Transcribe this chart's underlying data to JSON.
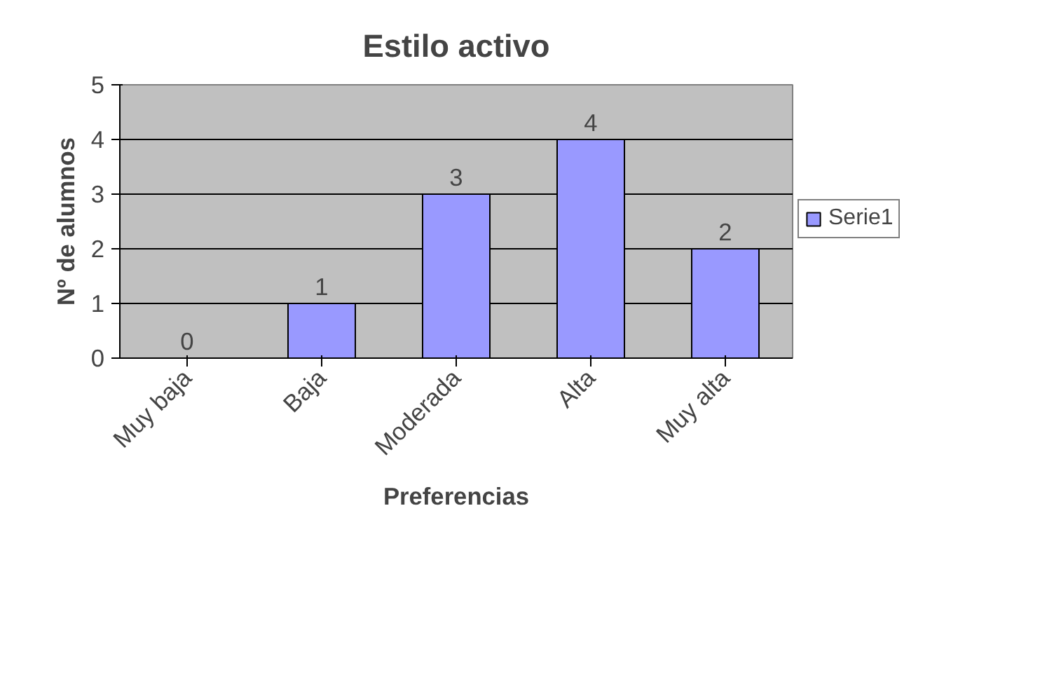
{
  "chart_data": {
    "type": "bar",
    "title": "Estilo activo",
    "xlabel": "Preferencias",
    "ylabel": "Nº de alumnos",
    "categories": [
      "Muy baja",
      "Baja",
      "Moderada",
      "Alta",
      "Muy alta"
    ],
    "series": [
      {
        "name": "Serie1",
        "color": "#9999ff",
        "values": [
          0,
          1,
          3,
          4,
          2
        ]
      }
    ],
    "ylim": [
      0,
      5
    ],
    "yticks": [
      0,
      1,
      2,
      3,
      4,
      5
    ],
    "grid": "y",
    "legend": "right",
    "data_labels": true
  }
}
